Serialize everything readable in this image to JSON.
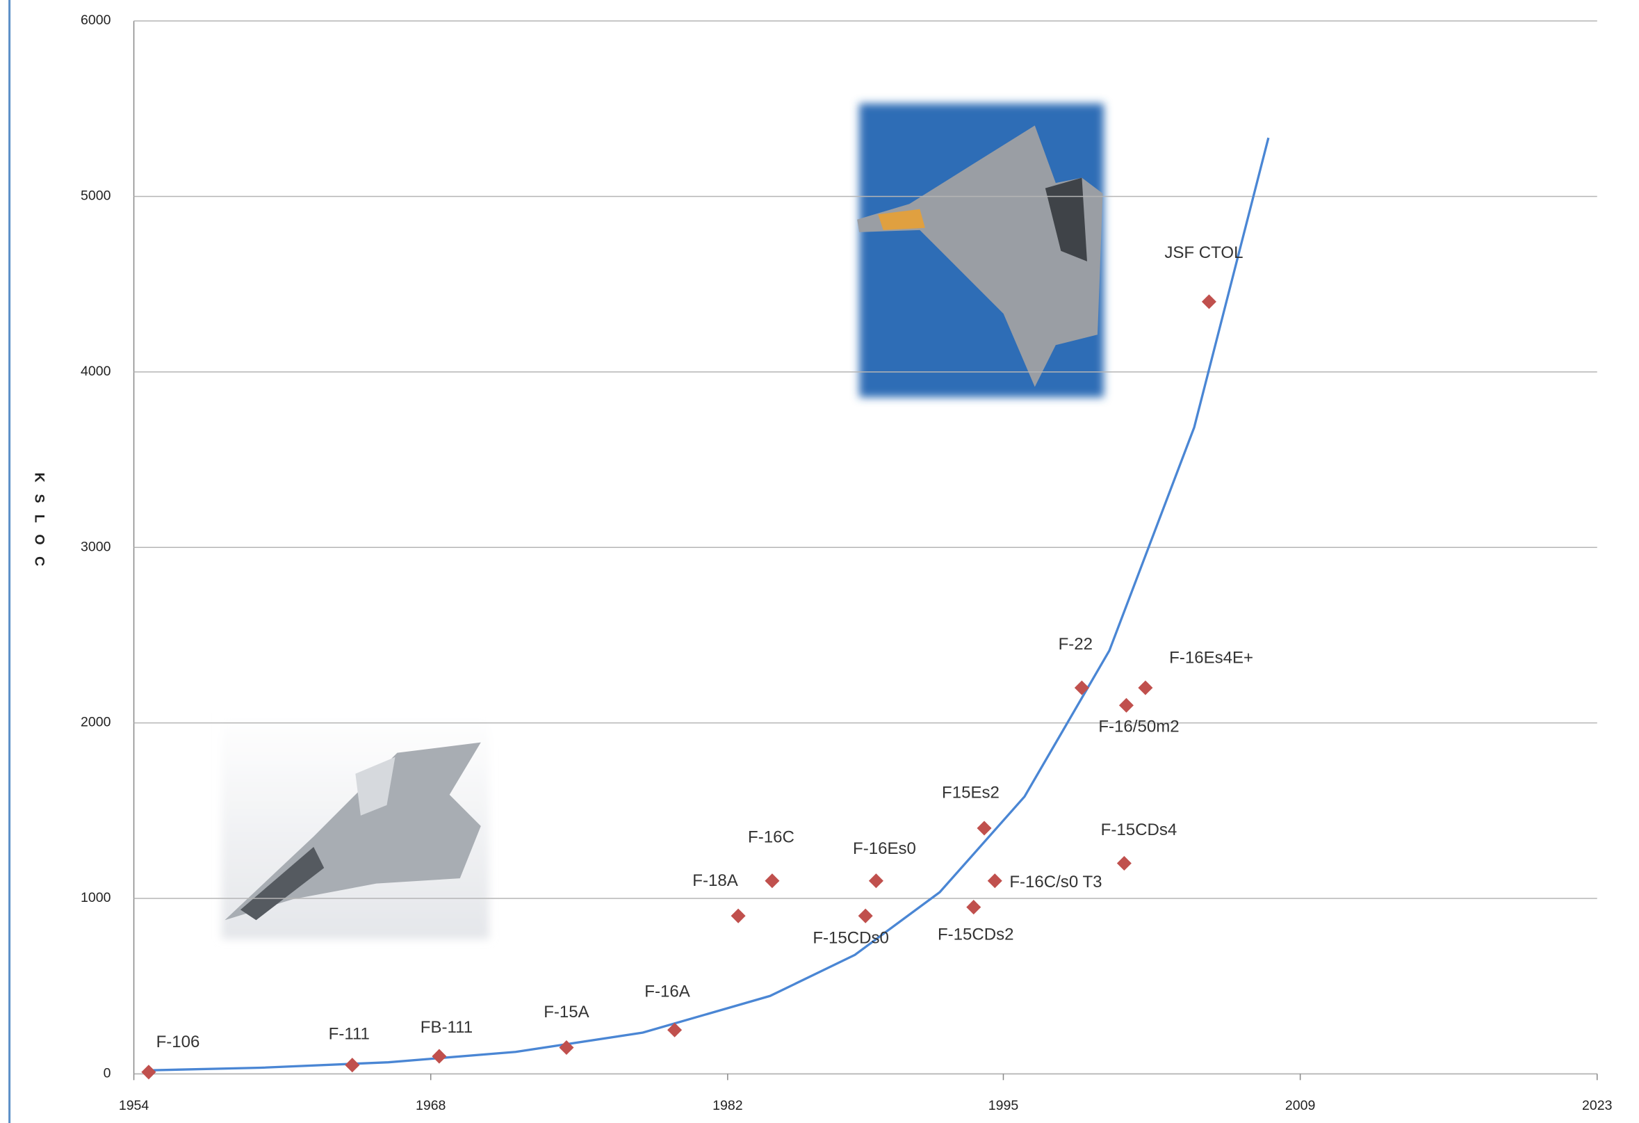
{
  "chart_data": {
    "type": "scatter",
    "y_label": "KSLOC",
    "x": [
      1954.7,
      1964.3,
      1968.4,
      1974.4,
      1979.5,
      1982.5,
      1984.1,
      1988.5,
      1989.0,
      1993.6,
      1994.1,
      1994.6,
      1998.7,
      2000.8,
      2001.7,
      2000.7,
      2004.7
    ],
    "values": [
      10,
      50,
      100,
      150,
      250,
      900,
      1100,
      900,
      1100,
      950,
      1400,
      1100,
      2200,
      2100,
      2200,
      1200,
      4400
    ],
    "labels": [
      "F-106",
      "F-111",
      "FB-111",
      "F-15A",
      "F-16A",
      "F-18A",
      "F-16C",
      "F-15CDs0",
      "F-16Es0",
      "F-15CDs2",
      "F15Es2",
      "F-16C/s0 T3",
      "F-22",
      "F-16/50m2",
      "F-16Es4E+",
      "F-15CDs4",
      "JSF CTOL"
    ],
    "color": "#c0504d",
    "trendline": {
      "color": "#4a86d4",
      "x": [
        1954.7,
        1960,
        1966,
        1972,
        1978,
        1984,
        1988,
        1992,
        1996,
        2000,
        2004,
        2007.5
      ],
      "values": [
        20,
        35,
        66,
        125,
        235,
        444,
        678,
        1035,
        1580,
        2412,
        3684,
        5334
      ]
    },
    "xlim": [
      1954,
      2023
    ],
    "xticks": [
      1954,
      1968,
      1982,
      1995,
      2009,
      2023
    ],
    "ylim": [
      0,
      6000
    ],
    "yticks": [
      0,
      1000,
      2000,
      3000,
      4000,
      5000,
      6000
    ],
    "grid": true
  }
}
